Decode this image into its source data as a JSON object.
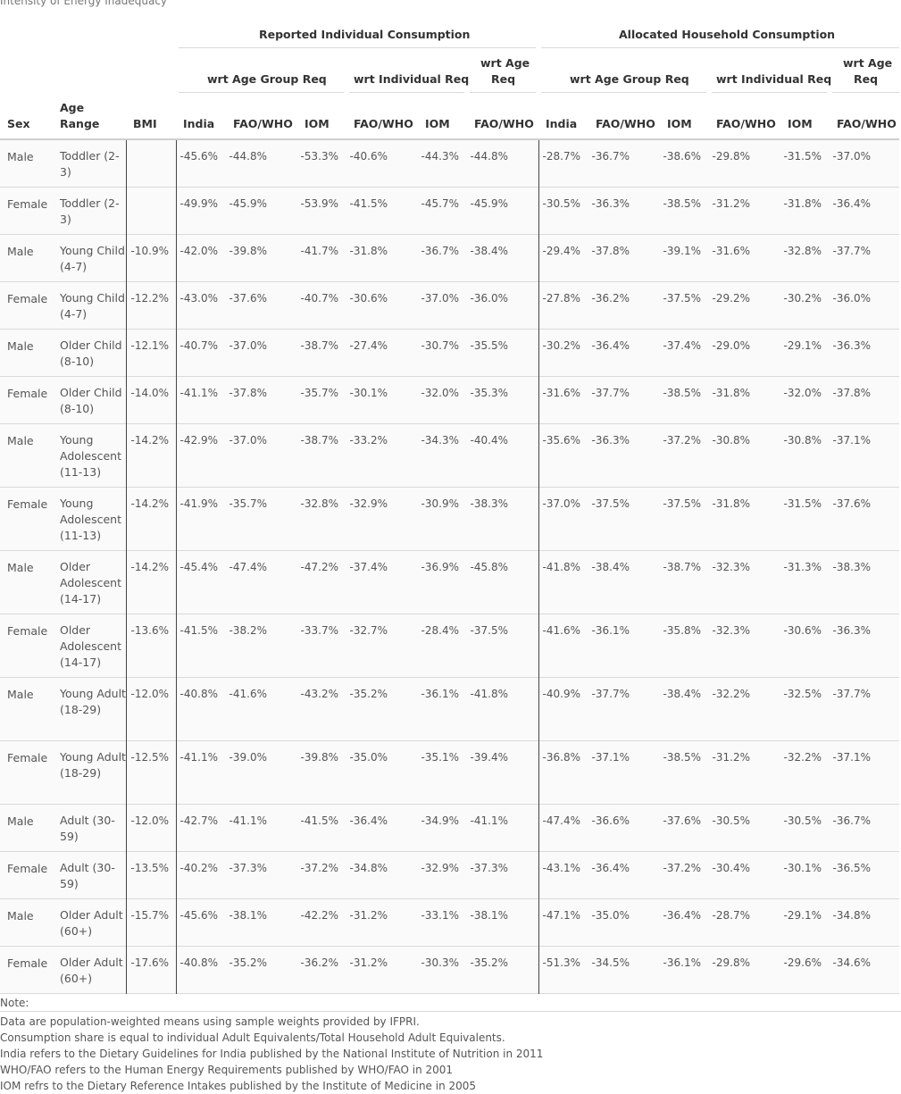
{
  "caption": "Intensity of Energy Inadequacy",
  "groups": {
    "reported": "Reported Individual Consumption",
    "allocated": "Allocated Household Consumption"
  },
  "subgroups": {
    "age_group": "wrt Age Group Req",
    "individual": "wrt Individual Req",
    "age_req_line1": "wrt Age",
    "age_req_line2": "Req"
  },
  "columns": {
    "sex": "Sex",
    "age_line1": "Age",
    "age_line2": "Range",
    "bmi": "BMI",
    "india": "India",
    "faowho": "FAO/WHO",
    "iom": "IOM"
  },
  "rows": [
    {
      "sex": "Male",
      "age": "Toddler (2-3)",
      "bmi": "",
      "v": [
        "-45.6%",
        "-44.8%",
        "-53.3%",
        "-40.6%",
        "-44.3%",
        "-44.8%",
        "-28.7%",
        "-36.7%",
        "-38.6%",
        "-29.8%",
        "-31.5%",
        "-37.0%"
      ]
    },
    {
      "sex": "Female",
      "age": "Toddler (2-3)",
      "bmi": "",
      "v": [
        "-49.9%",
        "-45.9%",
        "-53.9%",
        "-41.5%",
        "-45.7%",
        "-45.9%",
        "-30.5%",
        "-36.3%",
        "-38.5%",
        "-31.2%",
        "-31.8%",
        "-36.4%"
      ]
    },
    {
      "sex": "Male",
      "age": "Young Child (4-7)",
      "bmi": "-10.9%",
      "v": [
        "-42.0%",
        "-39.8%",
        "-41.7%",
        "-31.8%",
        "-36.7%",
        "-38.4%",
        "-29.4%",
        "-37.8%",
        "-39.1%",
        "-31.6%",
        "-32.8%",
        "-37.7%"
      ]
    },
    {
      "sex": "Female",
      "age": "Young Child (4-7)",
      "bmi": "-12.2%",
      "v": [
        "-43.0%",
        "-37.6%",
        "-40.7%",
        "-30.6%",
        "-37.0%",
        "-36.0%",
        "-27.8%",
        "-36.2%",
        "-37.5%",
        "-29.2%",
        "-30.2%",
        "-36.0%"
      ]
    },
    {
      "sex": "Male",
      "age": "Older Child (8-10)",
      "bmi": "-12.1%",
      "v": [
        "-40.7%",
        "-37.0%",
        "-38.7%",
        "-27.4%",
        "-30.7%",
        "-35.5%",
        "-30.2%",
        "-36.4%",
        "-37.4%",
        "-29.0%",
        "-29.1%",
        "-36.3%"
      ]
    },
    {
      "sex": "Female",
      "age": "Older Child (8-10)",
      "bmi": "-14.0%",
      "v": [
        "-41.1%",
        "-37.8%",
        "-35.7%",
        "-30.1%",
        "-32.0%",
        "-35.3%",
        "-31.6%",
        "-37.7%",
        "-38.5%",
        "-31.8%",
        "-32.0%",
        "-37.8%"
      ]
    },
    {
      "sex": "Male",
      "age": "Young Adolescent (11-13)",
      "bmi": "-14.2%",
      "v": [
        "-42.9%",
        "-37.0%",
        "-38.7%",
        "-33.2%",
        "-34.3%",
        "-40.4%",
        "-35.6%",
        "-36.3%",
        "-37.2%",
        "-30.8%",
        "-30.8%",
        "-37.1%"
      ]
    },
    {
      "sex": "Female",
      "age": "Young Adolescent (11-13)",
      "bmi": "-14.2%",
      "v": [
        "-41.9%",
        "-35.7%",
        "-32.8%",
        "-32.9%",
        "-30.9%",
        "-38.3%",
        "-37.0%",
        "-37.5%",
        "-37.5%",
        "-31.8%",
        "-31.5%",
        "-37.6%"
      ]
    },
    {
      "sex": "Male",
      "age": "Older Adolescent (14-17)",
      "bmi": "-14.2%",
      "v": [
        "-45.4%",
        "-47.4%",
        "-47.2%",
        "-37.4%",
        "-36.9%",
        "-45.8%",
        "-41.8%",
        "-38.4%",
        "-38.7%",
        "-32.3%",
        "-31.3%",
        "-38.3%"
      ]
    },
    {
      "sex": "Female",
      "age": "Older Adolescent (14-17)",
      "bmi": "-13.6%",
      "v": [
        "-41.5%",
        "-38.2%",
        "-33.7%",
        "-32.7%",
        "-28.4%",
        "-37.5%",
        "-41.6%",
        "-36.1%",
        "-35.8%",
        "-32.3%",
        "-30.6%",
        "-36.3%"
      ]
    },
    {
      "sex": "Male",
      "age": "Young Adult (18-29)",
      "bmi": "-12.0%",
      "v": [
        "-40.8%",
        "-41.6%",
        "-43.2%",
        "-35.2%",
        "-36.1%",
        "-41.8%",
        "-40.9%",
        "-37.7%",
        "-38.4%",
        "-32.2%",
        "-32.5%",
        "-37.7%"
      ]
    },
    {
      "sex": "Female",
      "age": "Young Adult (18-29)",
      "bmi": "-12.5%",
      "v": [
        "-41.1%",
        "-39.0%",
        "-39.8%",
        "-35.0%",
        "-35.1%",
        "-39.4%",
        "-36.8%",
        "-37.1%",
        "-38.5%",
        "-31.2%",
        "-32.2%",
        "-37.1%"
      ]
    },
    {
      "sex": "Male",
      "age": "Adult (30-59)",
      "bmi": "-12.0%",
      "v": [
        "-42.7%",
        "-41.1%",
        "-41.5%",
        "-36.4%",
        "-34.9%",
        "-41.1%",
        "-47.4%",
        "-36.6%",
        "-37.6%",
        "-30.5%",
        "-30.5%",
        "-36.7%"
      ]
    },
    {
      "sex": "Female",
      "age": "Adult (30-59)",
      "bmi": "-13.5%",
      "v": [
        "-40.2%",
        "-37.3%",
        "-37.2%",
        "-34.8%",
        "-32.9%",
        "-37.3%",
        "-43.1%",
        "-36.4%",
        "-37.2%",
        "-30.4%",
        "-30.1%",
        "-36.5%"
      ]
    },
    {
      "sex": "Male",
      "age": "Older Adult (60+)",
      "bmi": "-15.7%",
      "v": [
        "-45.6%",
        "-38.1%",
        "-42.2%",
        "-31.2%",
        "-33.1%",
        "-38.1%",
        "-47.1%",
        "-35.0%",
        "-36.4%",
        "-28.7%",
        "-29.1%",
        "-34.8%"
      ]
    },
    {
      "sex": "Female",
      "age": "Older Adult (60+)",
      "bmi": "-17.6%",
      "v": [
        "-40.8%",
        "-35.2%",
        "-36.2%",
        "-31.2%",
        "-30.3%",
        "-35.2%",
        "-51.3%",
        "-34.5%",
        "-36.1%",
        "-29.8%",
        "-29.6%",
        "-34.6%"
      ]
    }
  ],
  "notes": {
    "title": "Note:",
    "lines": [
      "Data are population-weighted means using sample weights provided by IFPRI.",
      "Consumption share is equal to individual Adult Equivalents/Total Household Adult Equivalents.",
      "India refers to the Dietary Guidelines for India published by the National Institute of Nutrition in 2011",
      "WHO/FAO refers to the Human Energy Requirements published by WHO/FAO in 2001",
      "IOM refrs to the Dietary Reference Intakes published by the Institute of Medicine in 2005"
    ]
  }
}
